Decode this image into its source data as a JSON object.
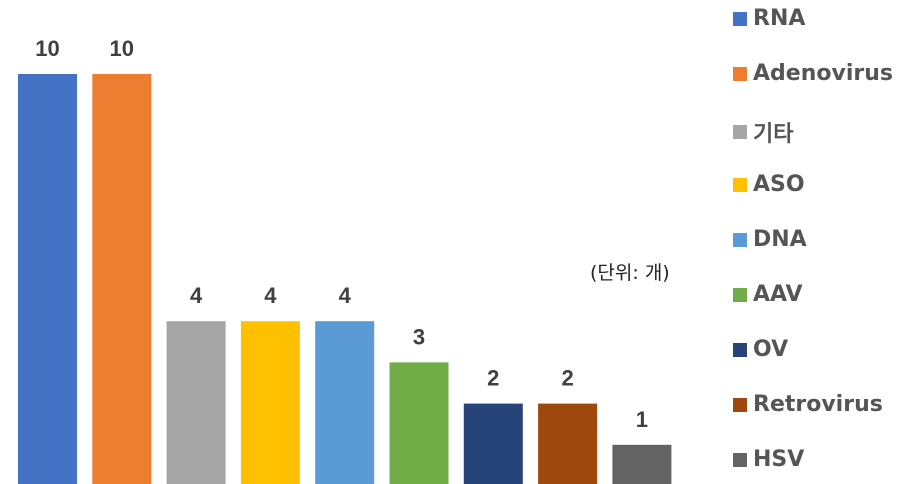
{
  "chart_data": {
    "type": "bar",
    "categories": [
      "RNA",
      "Adenovirus",
      "기타",
      "ASO",
      "DNA",
      "AAV",
      "OV",
      "Retrovirus",
      "HSV"
    ],
    "values": [
      10,
      10,
      4,
      4,
      4,
      3,
      2,
      2,
      1
    ],
    "colors": [
      "#4472C4",
      "#ED7D31",
      "#A5A5A5",
      "#FFC000",
      "#5B9BD5",
      "#70AD47",
      "#264478",
      "#9E480E",
      "#636363"
    ],
    "ylim": [
      0,
      10
    ],
    "grid": false,
    "data_labels": true,
    "legend_position": "right",
    "legend": [
      "RNA",
      "Adenovirus",
      "기타",
      "ASO",
      "DNA",
      "AAV",
      "OV",
      "Retrovirus",
      "HSV"
    ],
    "unit_note": "(단위: 개)"
  }
}
